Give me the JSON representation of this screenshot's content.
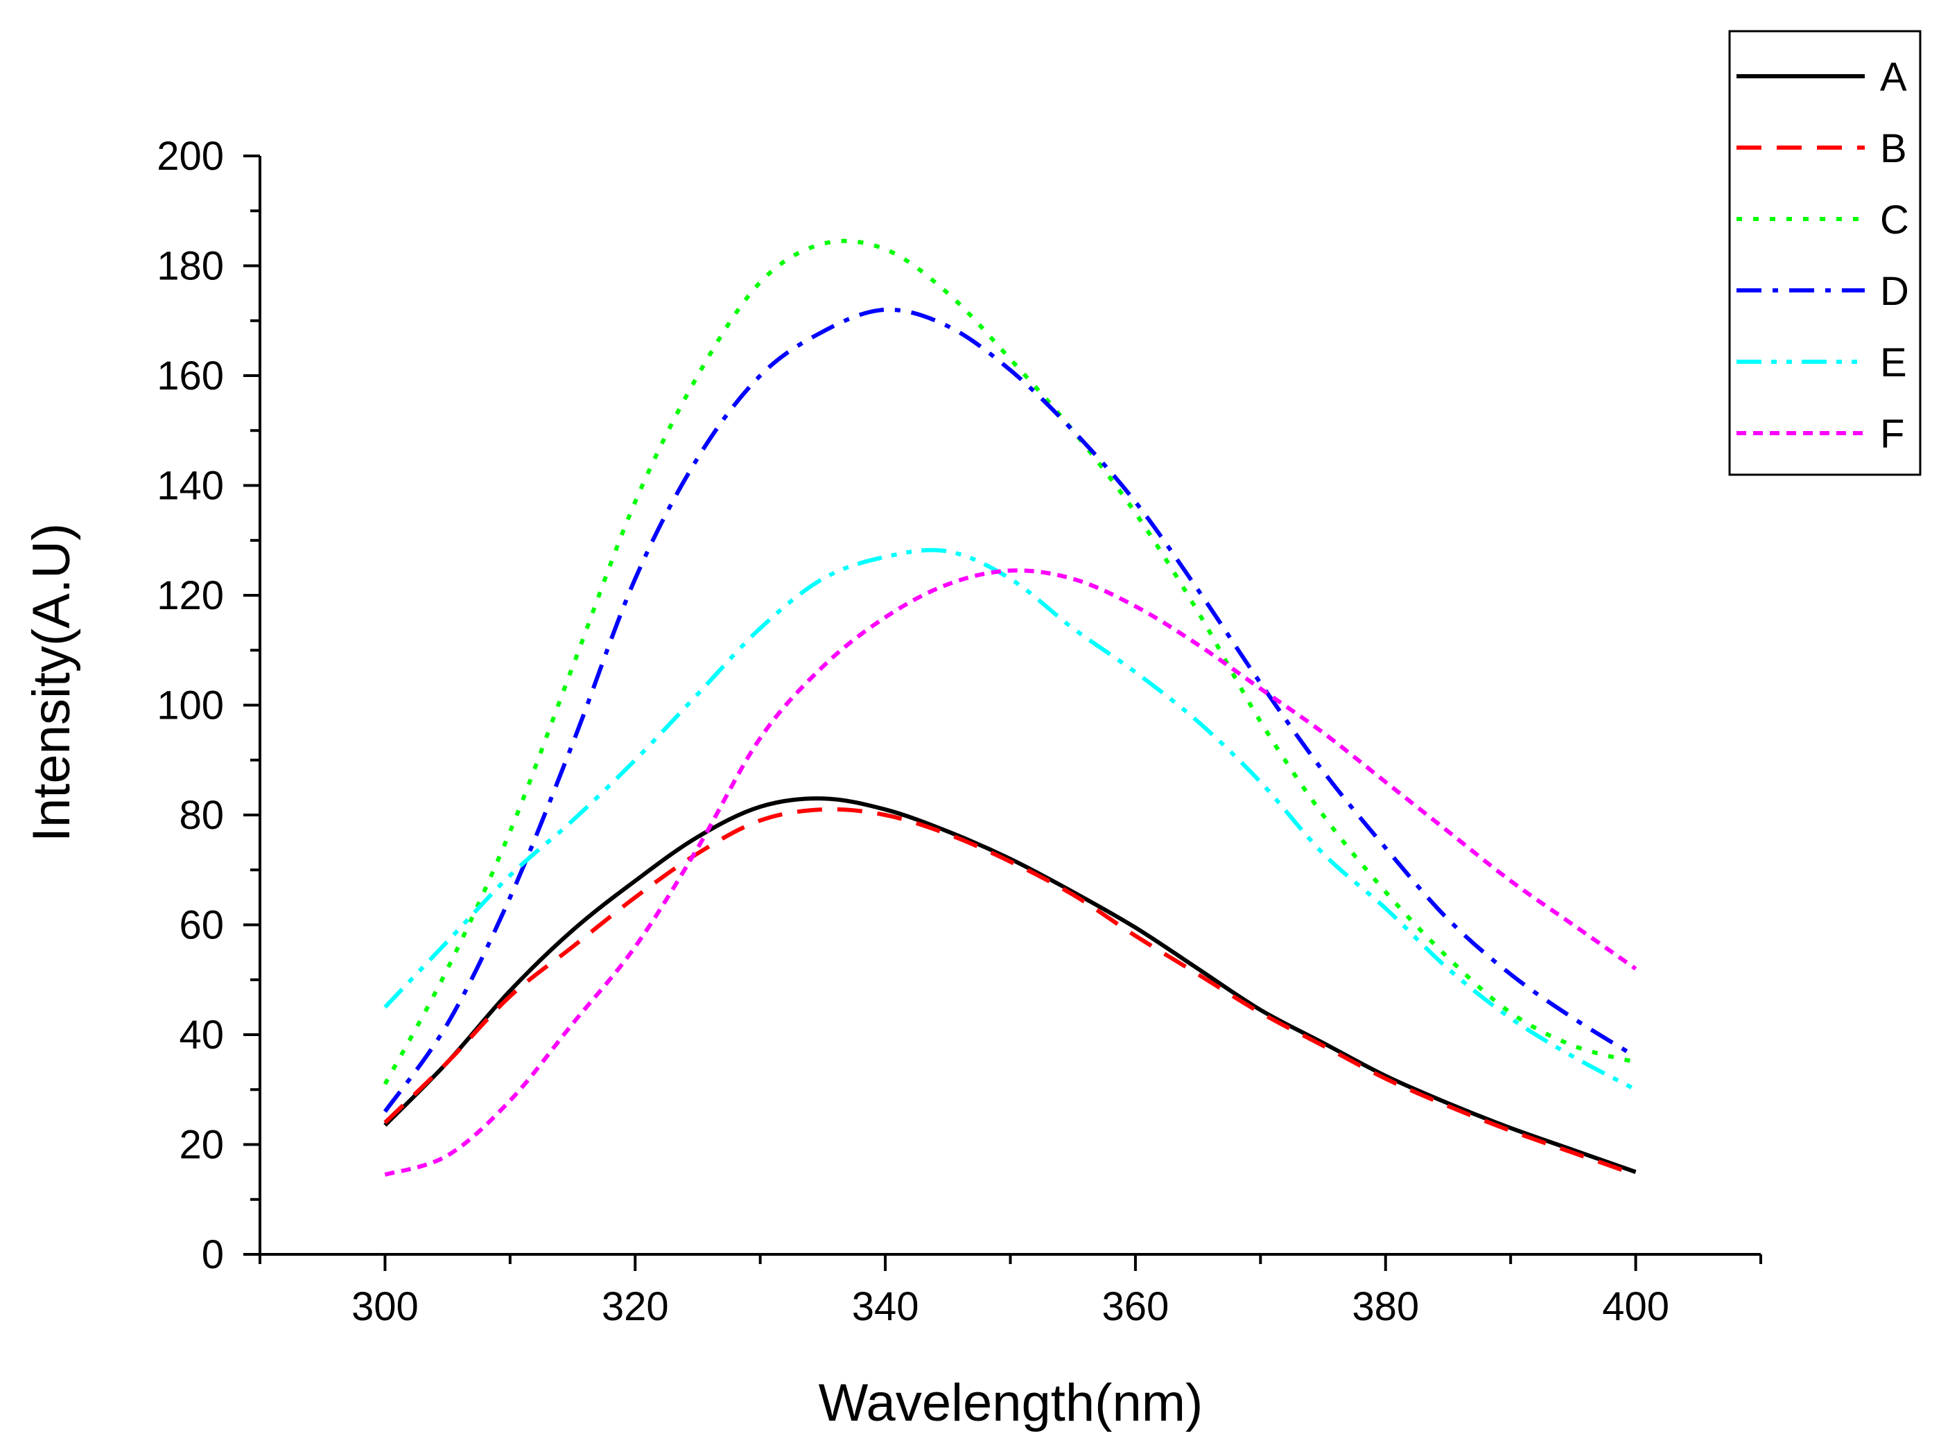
{
  "chart_data": {
    "type": "line",
    "title": "",
    "xlabel": "Wavelength(nm)",
    "ylabel": "Intensity(A.U)",
    "xlim": [
      290,
      410
    ],
    "ylim": [
      0,
      200
    ],
    "x_ticks": [
      300,
      320,
      340,
      360,
      380,
      400
    ],
    "y_ticks": [
      0,
      20,
      40,
      60,
      80,
      100,
      120,
      140,
      160,
      180,
      200
    ],
    "x_tick_labels": [
      "300",
      "320",
      "340",
      "360",
      "380",
      "400"
    ],
    "y_tick_labels": [
      "0",
      "20",
      "40",
      "60",
      "80",
      "100",
      "120",
      "140",
      "160",
      "180",
      "200"
    ],
    "grid": false,
    "legend_position": "top-right",
    "x": [
      300,
      305,
      310,
      315,
      320,
      325,
      330,
      335,
      340,
      345,
      350,
      355,
      360,
      365,
      370,
      375,
      380,
      385,
      390,
      395,
      400
    ],
    "series": [
      {
        "name": "A",
        "color": "#000000",
        "dash": "solid",
        "values": [
          23.5,
          35,
          48,
          59,
          68,
          76,
          81.5,
          83,
          81,
          77,
          72,
          66,
          59.5,
          52,
          44.5,
          38.5,
          32.5,
          27.5,
          23,
          19,
          15
        ]
      },
      {
        "name": "B",
        "color": "#ff0000",
        "dash": "dash",
        "values": [
          24,
          35,
          47,
          56,
          65,
          73,
          79,
          81,
          80,
          76.5,
          71.5,
          65.5,
          58,
          51,
          44,
          38,
          32,
          27,
          22.5,
          18.5,
          14.5
        ]
      },
      {
        "name": "C",
        "color": "#00ff00",
        "dash": "dot",
        "values": [
          31,
          52,
          77,
          107,
          137,
          160,
          177,
          184,
          183,
          175,
          163,
          150,
          135,
          117,
          97,
          80,
          66,
          54,
          44,
          38,
          35
        ]
      },
      {
        "name": "D",
        "color": "#0000ff",
        "dash": "dashdot",
        "values": [
          26,
          42,
          65,
          93,
          123,
          145,
          160,
          168,
          172,
          169,
          161,
          150,
          137,
          121,
          104,
          88,
          74,
          61,
          51,
          43,
          36
        ]
      },
      {
        "name": "E",
        "color": "#00ffff",
        "dash": "dashdotdot",
        "values": [
          45,
          57,
          69,
          79,
          90,
          102,
          114,
          123,
          127,
          128,
          123,
          114,
          106,
          97,
          86,
          73,
          63,
          52,
          43,
          36,
          30
        ]
      },
      {
        "name": "F",
        "color": "#ff00ff",
        "dash": "shortdash",
        "values": [
          14.5,
          18,
          28,
          42,
          56,
          74,
          94,
          107,
          116,
          122,
          124.5,
          123,
          118,
          111,
          103,
          95,
          86,
          77,
          68,
          60,
          52
        ]
      }
    ]
  }
}
